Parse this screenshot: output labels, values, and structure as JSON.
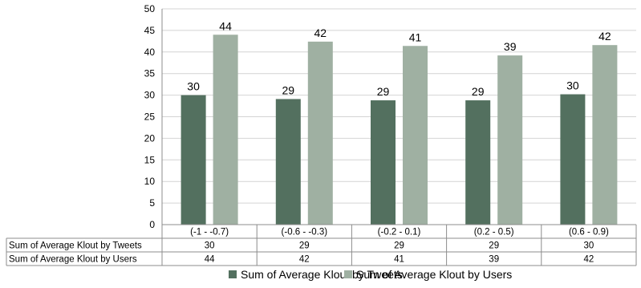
{
  "chart_data": {
    "type": "bar",
    "title": "",
    "xlabel": "",
    "ylabel": "",
    "ylim": [
      0,
      50
    ],
    "yticks": [
      0,
      5,
      10,
      15,
      20,
      25,
      30,
      35,
      40,
      45,
      50
    ],
    "grid": true,
    "legend_placement": "bottom",
    "categories": [
      "(-1 - -0.7)",
      "(-0.6 - -0.3)",
      "(-0.2 - 0.1)",
      "(0.2 - 0.5)",
      "(0.6 - 0.9)"
    ],
    "series": [
      {
        "name": "Sum of Average Klout by Tweets",
        "color": "#53705f",
        "values": [
          30,
          29.1,
          28.8,
          28.8,
          30.2
        ],
        "labels": [
          "30",
          "29",
          "29",
          "29",
          "30"
        ]
      },
      {
        "name": "Sum of Average Klout by Users",
        "color": "#9fb0a2",
        "values": [
          44,
          42.4,
          41.4,
          39.2,
          41.6
        ],
        "labels": [
          "44",
          "42",
          "41",
          "39",
          "42"
        ]
      }
    ],
    "data_table": [
      {
        "label": "Sum of Average Klout by Tweets",
        "cells": [
          "30",
          "29",
          "29",
          "29",
          "30"
        ]
      },
      {
        "label": "Sum of Average Klout by Users",
        "cells": [
          "44",
          "42",
          "41",
          "39",
          "42"
        ]
      }
    ]
  }
}
